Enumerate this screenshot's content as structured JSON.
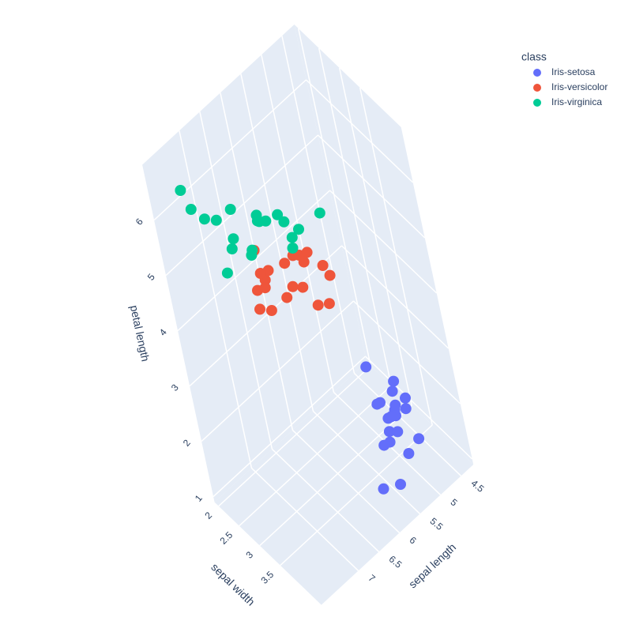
{
  "chart_data": {
    "type": "scatter3d",
    "xlabel": "sepal length",
    "ylabel": "sepal width",
    "zlabel": "petal length",
    "legend_title": "class",
    "xlim": [
      4.2,
      7.9
    ],
    "ylim": [
      1.9,
      4.5
    ],
    "zlim": [
      0.9,
      7
    ],
    "xticks": [
      4.5,
      5,
      5.5,
      6,
      6.5,
      7
    ],
    "yticks": [
      2,
      2.5,
      3,
      3.5
    ],
    "zticks": [
      1,
      2,
      3,
      4,
      5,
      6
    ],
    "grid": true,
    "series": [
      {
        "name": "Iris-setosa",
        "color": "#636efa",
        "x": [
          5.1,
          4.9,
          4.7,
          4.6,
          5.0,
          5.4,
          4.6,
          5.0,
          4.4,
          4.9,
          5.4,
          4.8,
          4.3,
          5.8,
          5.7,
          5.1,
          4.5,
          5.2,
          5.0,
          4.6
        ],
        "y": [
          3.5,
          3.0,
          3.2,
          3.1,
          3.6,
          3.9,
          3.4,
          3.4,
          2.9,
          3.1,
          3.7,
          3.4,
          3.0,
          4.0,
          4.4,
          3.8,
          2.3,
          4.1,
          3.5,
          3.6
        ],
        "z": [
          1.4,
          1.4,
          1.3,
          1.5,
          1.4,
          1.7,
          1.4,
          1.5,
          1.4,
          1.5,
          1.5,
          1.6,
          1.1,
          1.2,
          1.5,
          1.9,
          1.3,
          1.5,
          1.6,
          1.0
        ]
      },
      {
        "name": "Iris-versicolor",
        "color": "#EF553B",
        "x": [
          7.0,
          6.4,
          6.9,
          5.5,
          6.5,
          5.7,
          6.3,
          4.9,
          6.6,
          5.2,
          5.0,
          5.9,
          6.0,
          6.1,
          5.6,
          6.7,
          5.9,
          6.2,
          6.7,
          5.1
        ],
        "y": [
          3.2,
          3.2,
          3.1,
          2.3,
          2.8,
          2.8,
          3.3,
          2.4,
          2.9,
          2.7,
          2.0,
          3.0,
          2.2,
          2.9,
          2.9,
          3.1,
          3.2,
          2.2,
          3.0,
          2.5
        ],
        "z": [
          4.7,
          4.5,
          4.9,
          4.0,
          4.6,
          4.5,
          4.7,
          3.3,
          4.6,
          3.9,
          3.5,
          4.2,
          4.0,
          4.7,
          3.6,
          4.4,
          4.8,
          4.5,
          5.0,
          3.0
        ]
      },
      {
        "name": "Iris-virginica",
        "color": "#00cc96",
        "x": [
          6.3,
          5.8,
          7.1,
          6.3,
          6.5,
          7.6,
          4.9,
          7.3,
          6.7,
          7.2,
          7.7,
          7.7,
          6.0,
          6.9,
          5.6,
          7.7,
          7.9,
          6.4,
          6.2,
          5.9
        ],
        "y": [
          3.3,
          2.7,
          3.0,
          2.9,
          3.0,
          3.0,
          2.5,
          2.9,
          2.5,
          3.6,
          3.8,
          2.6,
          2.2,
          3.2,
          2.8,
          2.8,
          3.8,
          2.8,
          3.4,
          3.0
        ],
        "z": [
          6.0,
          5.1,
          5.9,
          5.6,
          5.8,
          6.6,
          4.5,
          6.3,
          5.8,
          6.1,
          6.7,
          6.9,
          5.0,
          5.7,
          4.9,
          6.7,
          6.4,
          5.6,
          5.4,
          5.1
        ]
      }
    ]
  }
}
